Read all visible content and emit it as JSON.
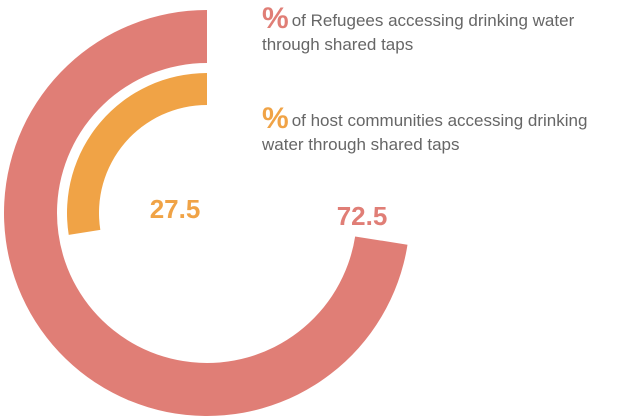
{
  "colors": {
    "refugees": "#e07e76",
    "host": "#f0a346",
    "legend_text": "#666666"
  },
  "legend": [
    {
      "symbol": "%",
      "label": "of Refugees accessing drinking water through shared taps",
      "color": "#e07e76"
    },
    {
      "symbol": "%",
      "label": "of host communities accessing drinking water through shared taps",
      "color": "#f0a346"
    }
  ],
  "chart_data": {
    "type": "pie",
    "variant": "nested-radial-rings",
    "series": [
      {
        "name": "of Refugees accessing drinking water through shared taps",
        "value": 72.5,
        "color": "#e07e76",
        "ring": "outer"
      },
      {
        "name": "of host communities accessing drinking water through shared taps",
        "value": 27.5,
        "color": "#f0a346",
        "ring": "inner"
      }
    ],
    "max": 100,
    "data_labels": [
      "72.5",
      "27.5"
    ],
    "title": ""
  }
}
